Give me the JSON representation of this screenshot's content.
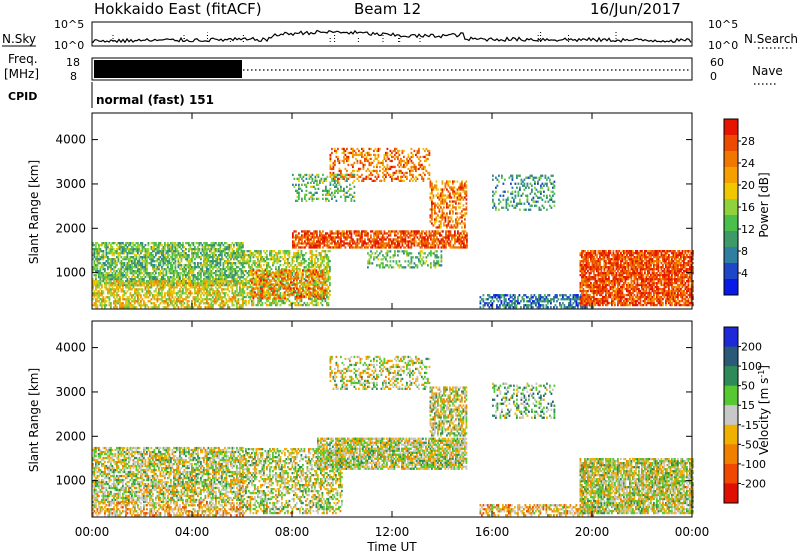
{
  "header": {
    "station": "Hokkaido East (fitACF)",
    "beam": "Beam 12",
    "date": "16/Jun/2017"
  },
  "labels": {
    "nsky": "N.Sky",
    "nsearch": "N.Search",
    "freq_top": "Freq.",
    "freq_unit": "[MHz]",
    "nave": "Nave",
    "cpid": "CPID",
    "cpid_value": "normal (fast) 151",
    "ylabel": "Slant Range [km]",
    "xlabel": "Time UT",
    "power_label": "Power [dB]",
    "velocity_label_main": "Velocity [m s",
    "velocity_label_sup": "-1",
    "velocity_label_end": "]"
  },
  "noise_axis": {
    "left_ticks": [
      "10^5",
      "10^0"
    ],
    "right_ticks": [
      "10^5",
      "10^0"
    ]
  },
  "freq_axis": {
    "left_ticks": [
      "18",
      "8"
    ],
    "right_ticks": [
      "60",
      "0"
    ]
  },
  "chart_data": [
    {
      "type": "heatmap",
      "panel": "power",
      "xlabel": "Time UT",
      "ylabel": "Slant Range [km]",
      "x_ticks": [
        "00:00",
        "04:00",
        "08:00",
        "12:00",
        "16:00",
        "20:00",
        "00:00"
      ],
      "x_range_hours": [
        0,
        24
      ],
      "y_ticks": [
        1000,
        2000,
        3000,
        4000
      ],
      "y_range_km": [
        180,
        4600
      ],
      "colorbar": {
        "label": "Power [dB]",
        "ticks": [
          "4",
          "8",
          "12",
          "16",
          "20",
          "24",
          "28"
        ],
        "colors": [
          "#0a1ae6",
          "#1e46c8",
          "#2f7fa0",
          "#3f9a6a",
          "#4bbf4b",
          "#8fd23c",
          "#f0c800",
          "#f5a000",
          "#f07800",
          "#eb4a00",
          "#e61400"
        ]
      },
      "regions": [
        {
          "t": [
            0.0,
            6.0
          ],
          "r": [
            700,
            1650
          ],
          "level": 4,
          "density": 0.7
        },
        {
          "t": [
            0.0,
            6.0
          ],
          "r": [
            200,
            800
          ],
          "level": 6,
          "density": 0.6
        },
        {
          "t": [
            6.0,
            9.5
          ],
          "r": [
            250,
            1500
          ],
          "level": 5,
          "density": 0.55
        },
        {
          "t": [
            6.3,
            9.3
          ],
          "r": [
            400,
            1050
          ],
          "level": 8,
          "density": 0.5
        },
        {
          "t": [
            8.0,
            15.0
          ],
          "r": [
            1550,
            1950
          ],
          "level": 9,
          "density": 0.7
        },
        {
          "t": [
            11.0,
            14.0
          ],
          "r": [
            1100,
            1500
          ],
          "level": 4,
          "density": 0.35
        },
        {
          "t": [
            13.5,
            15.0
          ],
          "r": [
            2000,
            3050
          ],
          "level": 8,
          "density": 0.5
        },
        {
          "t": [
            9.5,
            13.5
          ],
          "r": [
            3050,
            3800
          ],
          "level": 8,
          "density": 0.35
        },
        {
          "t": [
            8.0,
            10.5
          ],
          "r": [
            2600,
            3200
          ],
          "level": 4,
          "density": 0.35
        },
        {
          "t": [
            16.0,
            18.5
          ],
          "r": [
            2400,
            3200
          ],
          "level": 3,
          "density": 0.25
        },
        {
          "t": [
            15.5,
            20.0
          ],
          "r": [
            200,
            500
          ],
          "level": 2,
          "density": 0.55
        },
        {
          "t": [
            19.5,
            24.0
          ],
          "r": [
            250,
            1500
          ],
          "level": 9,
          "density": 0.8
        }
      ]
    },
    {
      "type": "heatmap",
      "panel": "velocity",
      "xlabel": "Time UT",
      "ylabel": "Slant Range [km]",
      "x_ticks": [
        "00:00",
        "04:00",
        "08:00",
        "12:00",
        "16:00",
        "20:00",
        "00:00"
      ],
      "x_range_hours": [
        0,
        24
      ],
      "y_ticks": [
        1000,
        2000,
        3000,
        4000
      ],
      "y_range_km": [
        180,
        4600
      ],
      "colorbar": {
        "label": "Velocity [m s-1]",
        "ticks": [
          "200",
          "100",
          "50",
          "15",
          "-15",
          "-50",
          "-100",
          "-200"
        ],
        "colors": [
          "#1e2ad8",
          "#2a5a78",
          "#2f8a5a",
          "#55c832",
          "#c8c8c8",
          "#f0b000",
          "#f08000",
          "#f04800",
          "#e01000"
        ]
      },
      "regions": [
        {
          "t": [
            0.0,
            6.0
          ],
          "r": [
            500,
            1750
          ],
          "level": 4,
          "density": 0.65
        },
        {
          "t": [
            0.0,
            6.0
          ],
          "r": [
            200,
            500
          ],
          "level": 5,
          "density": 0.55
        },
        {
          "t": [
            6.0,
            10.0
          ],
          "r": [
            250,
            1700
          ],
          "level": 4,
          "density": 0.5
        },
        {
          "t": [
            9.0,
            15.0
          ],
          "r": [
            1250,
            1950
          ],
          "level": 4,
          "density": 0.8
        },
        {
          "t": [
            13.5,
            15.0
          ],
          "r": [
            2000,
            3100
          ],
          "level": 4,
          "density": 0.6
        },
        {
          "t": [
            9.5,
            13.5
          ],
          "r": [
            3050,
            3800
          ],
          "level": 4,
          "density": 0.35
        },
        {
          "t": [
            16.0,
            18.5
          ],
          "r": [
            2400,
            3200
          ],
          "level": 3,
          "density": 0.3
        },
        {
          "t": [
            15.5,
            20.0
          ],
          "r": [
            200,
            450
          ],
          "level": 5,
          "density": 0.5
        },
        {
          "t": [
            19.5,
            24.0
          ],
          "r": [
            250,
            1500
          ],
          "level": 4,
          "density": 0.8
        }
      ]
    }
  ]
}
